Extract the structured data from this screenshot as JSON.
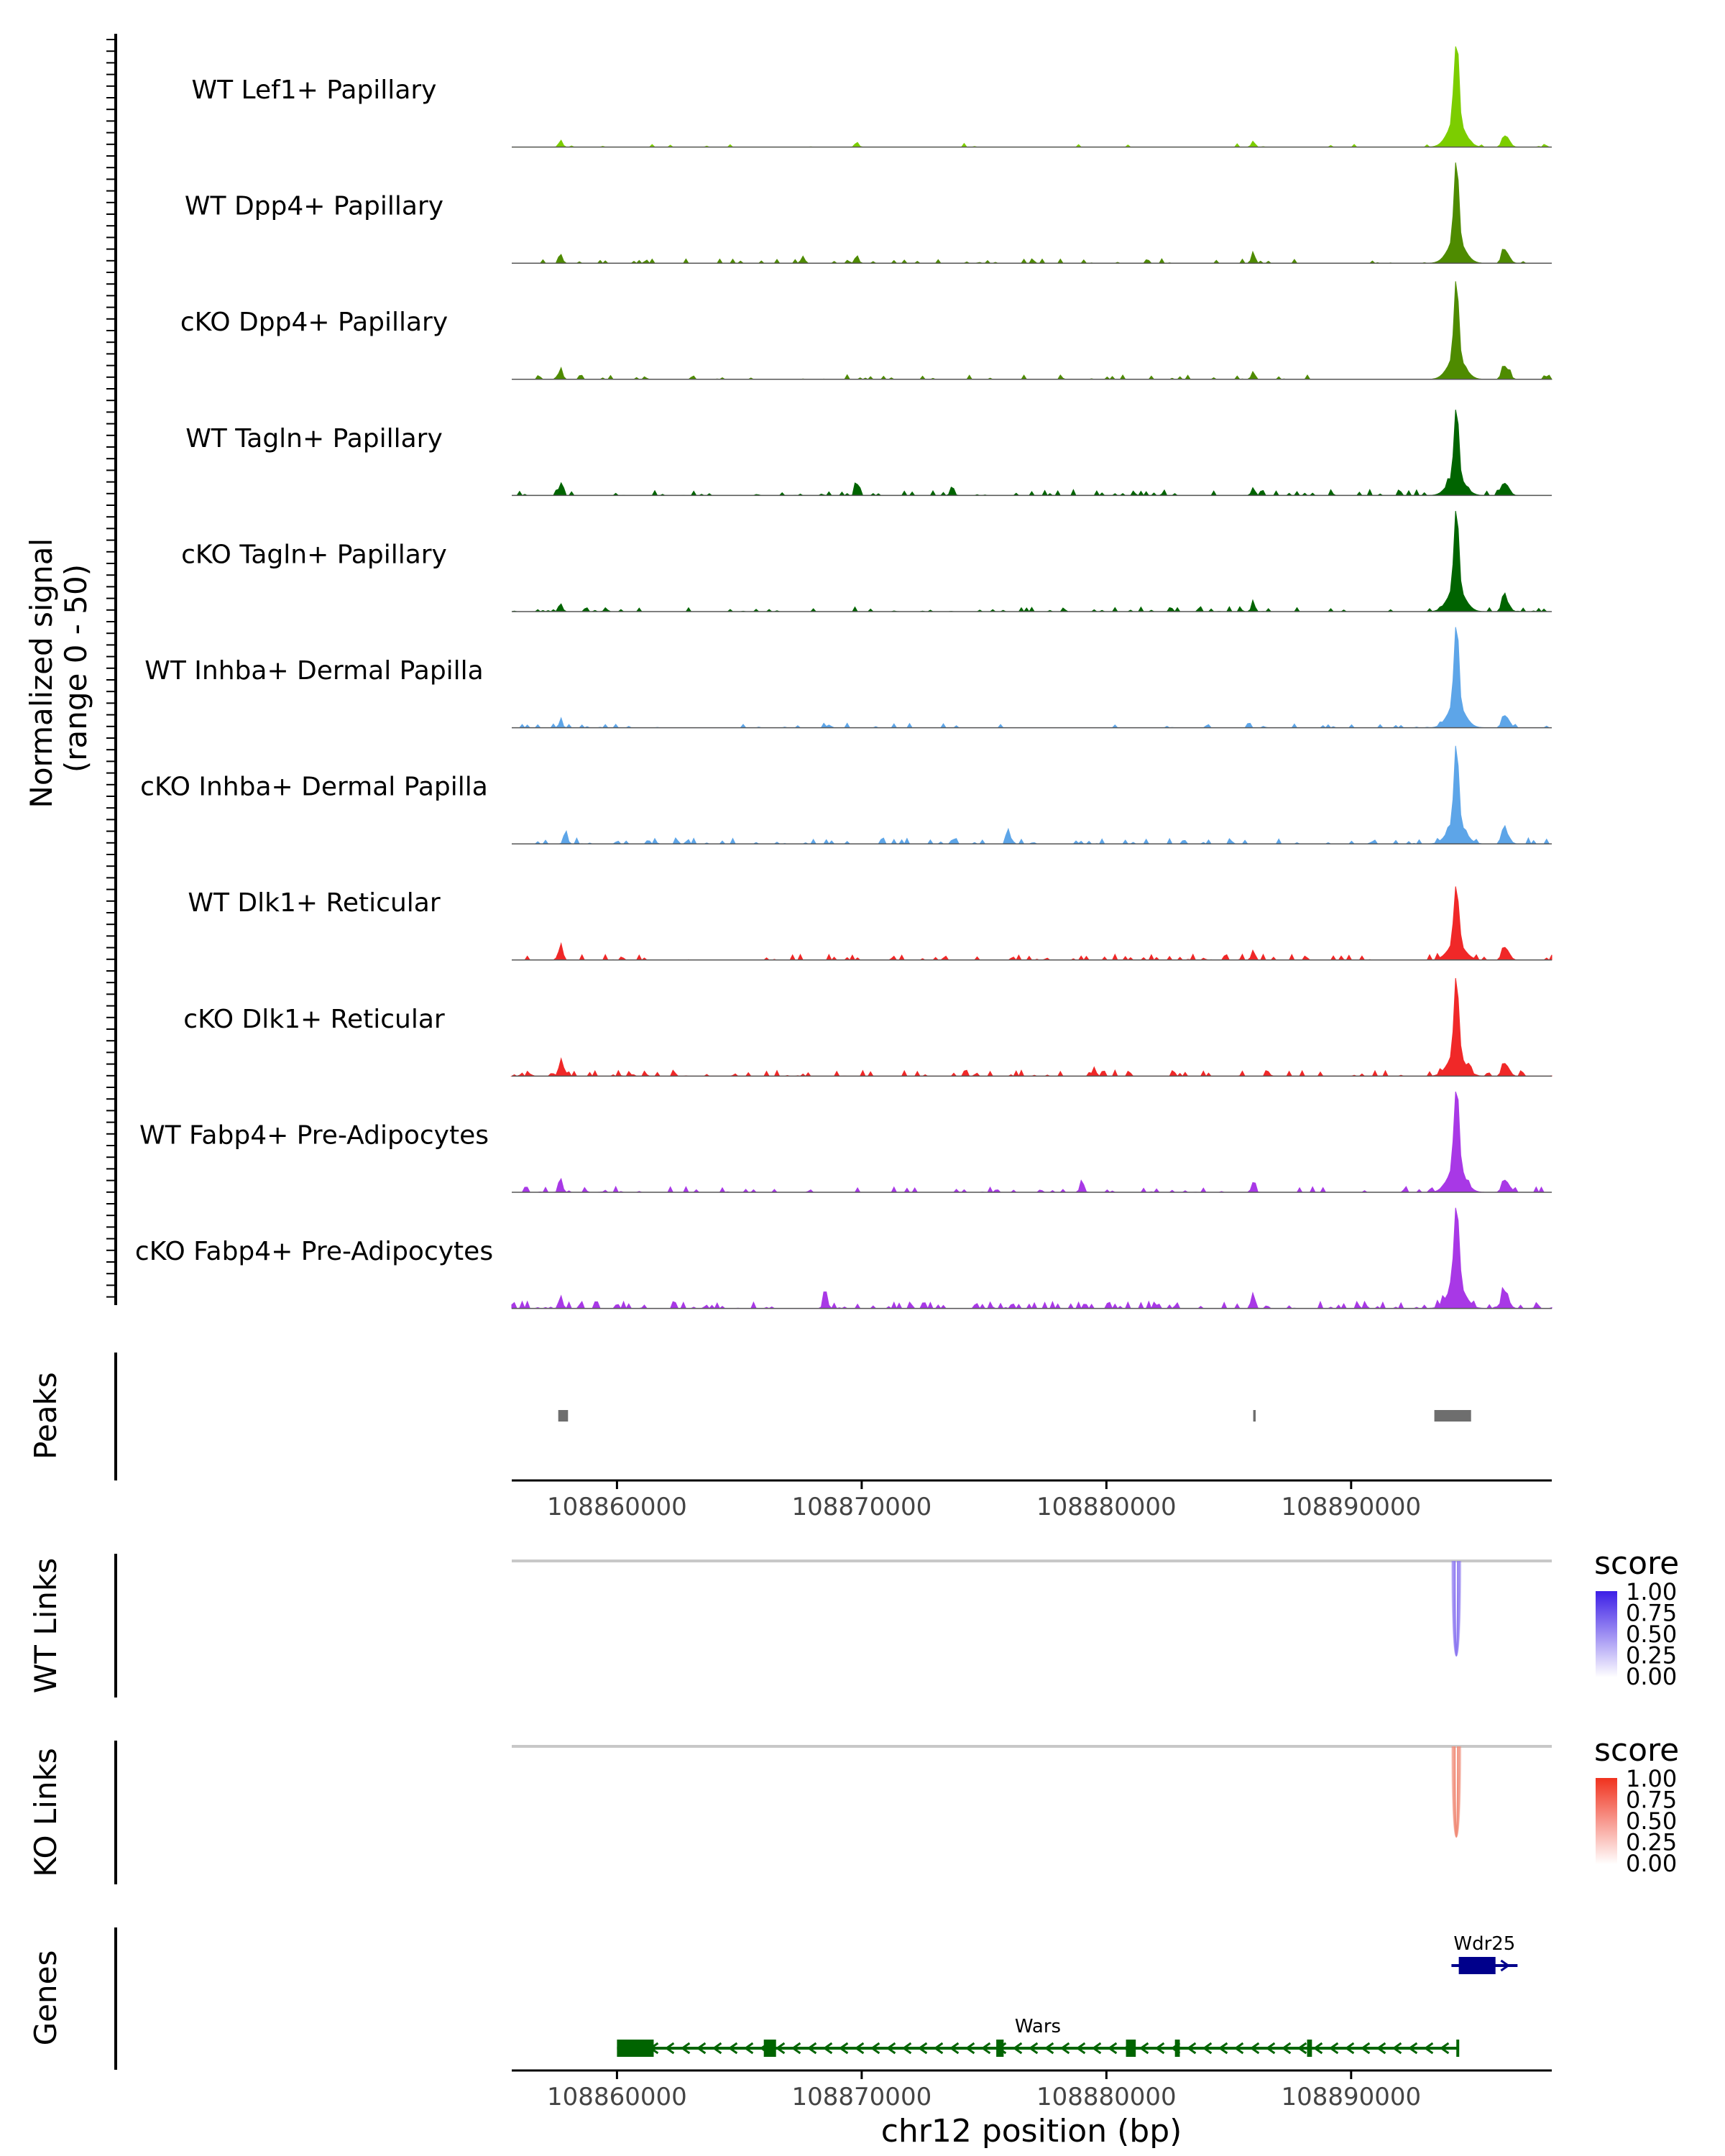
{
  "chart_data": {
    "type": "genome-coverage",
    "region": {
      "chrom": "chr12",
      "start": 108855700,
      "end": 108898200
    },
    "y_axis": {
      "label_line1": "Normalized signal",
      "label_line2": "(range 0 - 50)",
      "range": [
        0,
        50
      ]
    },
    "peak_center": 108894300,
    "tracks": [
      {
        "name": "WT Lef1+ Papillary",
        "color": "#7CCD00",
        "peak": 0.95,
        "noise": 0.2,
        "seed": 11,
        "extra_peaks": [
          {
            "pos": 108857700,
            "h": 0.07
          },
          {
            "pos": 108869800,
            "h": 0.05
          },
          {
            "pos": 108886000,
            "h": 0.06
          },
          {
            "pos": 108896200,
            "h": 0.05
          }
        ]
      },
      {
        "name": "WT Dpp4+ Papillary",
        "color": "#4E8B00",
        "peak": 0.85,
        "noise": 0.45,
        "seed": 23,
        "extra_peaks": [
          {
            "pos": 108857700,
            "h": 0.09
          },
          {
            "pos": 108867600,
            "h": 0.07
          },
          {
            "pos": 108869800,
            "h": 0.08
          },
          {
            "pos": 108886000,
            "h": 0.11
          },
          {
            "pos": 108896200,
            "h": 0.1
          }
        ]
      },
      {
        "name": "cKO Dpp4+ Papillary",
        "color": "#4E8B00",
        "peak": 0.8,
        "noise": 0.6,
        "seed": 37,
        "extra_peaks": [
          {
            "pos": 108857700,
            "h": 0.12
          },
          {
            "pos": 108886000,
            "h": 0.08
          },
          {
            "pos": 108896200,
            "h": 0.09
          }
        ]
      },
      {
        "name": "WT Tagln+ Papillary",
        "color": "#006400",
        "peak": 0.7,
        "noise": 0.9,
        "seed": 41,
        "extra_peaks": [
          {
            "pos": 108857700,
            "h": 0.13
          },
          {
            "pos": 108869800,
            "h": 0.12
          },
          {
            "pos": 108873700,
            "h": 0.1
          },
          {
            "pos": 108886000,
            "h": 0.08
          },
          {
            "pos": 108896200,
            "h": 0.07
          }
        ]
      },
      {
        "name": "cKO Tagln+ Papillary",
        "color": "#006400",
        "peak": 0.85,
        "noise": 0.7,
        "seed": 53,
        "extra_peaks": [
          {
            "pos": 108857700,
            "h": 0.08
          },
          {
            "pos": 108886000,
            "h": 0.09
          },
          {
            "pos": 108896200,
            "h": 0.11
          }
        ]
      },
      {
        "name": "WT Inhba+ Dermal Papilla",
        "color": "#5DA5E8",
        "peak": 0.85,
        "noise": 0.5,
        "seed": 67,
        "extra_peaks": [
          {
            "pos": 108857700,
            "h": 0.06
          },
          {
            "pos": 108896200,
            "h": 0.07
          }
        ]
      },
      {
        "name": "cKO Inhba+ Dermal Papilla",
        "color": "#5DA5E8",
        "peak": 0.8,
        "noise": 1.0,
        "seed": 71,
        "extra_peaks": [
          {
            "pos": 108857900,
            "h": 0.14
          },
          {
            "pos": 108876000,
            "h": 0.15
          },
          {
            "pos": 108896200,
            "h": 0.1
          }
        ]
      },
      {
        "name": "WT Dlk1+ Reticular",
        "color": "#F02828",
        "peak": 0.6,
        "noise": 0.9,
        "seed": 83,
        "extra_peaks": [
          {
            "pos": 108857700,
            "h": 0.17
          },
          {
            "pos": 108886000,
            "h": 0.1
          },
          {
            "pos": 108896200,
            "h": 0.08
          }
        ]
      },
      {
        "name": "cKO Dlk1+ Reticular",
        "color": "#F02828",
        "peak": 0.8,
        "noise": 1.0,
        "seed": 97,
        "extra_peaks": [
          {
            "pos": 108857700,
            "h": 0.16
          },
          {
            "pos": 108879500,
            "h": 0.09
          },
          {
            "pos": 108896200,
            "h": 0.08
          }
        ]
      },
      {
        "name": "WT Fabp4+ Pre-Adipocytes",
        "color": "#A838E6",
        "peak": 0.9,
        "noise": 0.9,
        "seed": 101,
        "extra_peaks": [
          {
            "pos": 108857700,
            "h": 0.14
          },
          {
            "pos": 108879000,
            "h": 0.13
          },
          {
            "pos": 108886000,
            "h": 0.1
          },
          {
            "pos": 108896200,
            "h": 0.07
          }
        ]
      },
      {
        "name": "cKO Fabp4+ Pre-Adipocytes",
        "color": "#A838E6",
        "peak": 0.9,
        "noise": 1.3,
        "seed": 113,
        "extra_peaks": [
          {
            "pos": 108857700,
            "h": 0.13
          },
          {
            "pos": 108868500,
            "h": 0.15
          },
          {
            "pos": 108886000,
            "h": 0.16
          },
          {
            "pos": 108896200,
            "h": 0.17
          }
        ]
      }
    ],
    "peaks": {
      "label": "Peaks",
      "color": "#6E6E6E",
      "regions": [
        {
          "start": 108857600,
          "end": 108858000
        },
        {
          "start": 108886000,
          "end": 108886100
        },
        {
          "start": 108893400,
          "end": 108894900
        }
      ]
    },
    "x_axis": {
      "ticks": [
        108860000,
        108870000,
        108880000,
        108890000
      ],
      "tick_labels": [
        "108860000",
        "108870000",
        "108880000",
        "108890000"
      ],
      "title": "chr12 position (bp)"
    },
    "links": [
      {
        "label": "WT Links",
        "anchor": 108894300,
        "min_score_color": "#FFFFFF",
        "max_score_color": "#3C1EE6",
        "legend": {
          "title": "score",
          "ticks": [
            "1.00",
            "0.75",
            "0.50",
            "0.25",
            "0.00"
          ]
        }
      },
      {
        "label": "KO Links",
        "anchor": 108894300,
        "min_score_color": "#FFFFFF",
        "max_score_color": "#F0321E",
        "legend": {
          "title": "score",
          "ticks": [
            "1.00",
            "0.75",
            "0.50",
            "0.25",
            "0.00"
          ]
        }
      }
    ],
    "genes": {
      "label": "Genes",
      "items": [
        {
          "name": "Wdr25",
          "color": "#00008B",
          "strand": "+",
          "start": 108894100,
          "end": 108896800,
          "exons": [
            {
              "start": 108894400,
              "end": 108895900
            }
          ]
        },
        {
          "name": "Wars",
          "color": "#006400",
          "strand": "-",
          "start": 108860000,
          "end": 108894400,
          "exons": [
            {
              "start": 108860000,
              "end": 108861500
            },
            {
              "start": 108866000,
              "end": 108866500
            },
            {
              "start": 108875500,
              "end": 108875800
            },
            {
              "start": 108880800,
              "end": 108881200
            },
            {
              "start": 108882800,
              "end": 108883000
            },
            {
              "start": 108888200,
              "end": 108888400
            },
            {
              "start": 108894300,
              "end": 108894400
            }
          ]
        }
      ]
    }
  }
}
